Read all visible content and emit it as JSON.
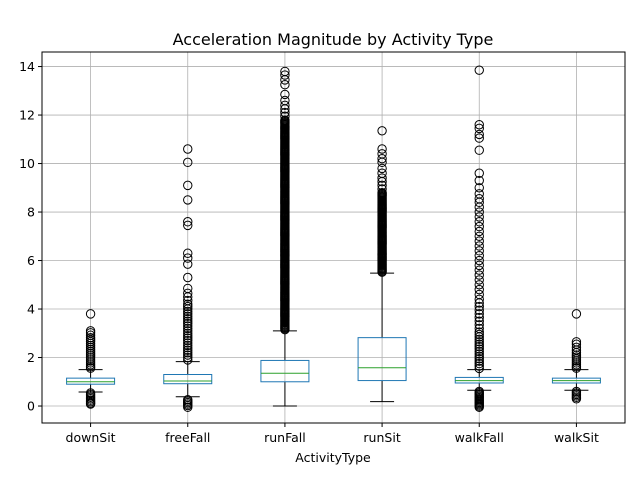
{
  "chart_data": {
    "type": "box",
    "title": "Acceleration Magnitude by Activity Type",
    "xlabel": "ActivityType",
    "ylabel": "",
    "ylim": [
      -0.7,
      14.6
    ],
    "yticks": [
      0,
      2,
      4,
      6,
      8,
      10,
      12,
      14
    ],
    "grid": true,
    "legend": "none",
    "colors": {
      "box": "#1f77b4",
      "median": "#2ca02c",
      "whisker": "#000000",
      "flier": "#000000",
      "grid": "#b0b0b0"
    },
    "categories": [
      "downSit",
      "freeFall",
      "runFall",
      "runSit",
      "walkFall",
      "walkSit"
    ],
    "boxes": [
      {
        "category": "downSit",
        "whislo": 0.58,
        "q1": 0.9,
        "med": 1.0,
        "q3": 1.15,
        "whishi": 1.5,
        "fliers_low": [
          0.08,
          0.12,
          0.18,
          0.24,
          0.3,
          0.36,
          0.42,
          0.48,
          0.54
        ],
        "fliers_high": [
          1.56,
          1.62,
          1.7,
          1.78,
          1.86,
          1.94,
          2.02,
          2.1,
          2.18,
          2.26,
          2.34,
          2.42,
          2.5,
          2.58,
          2.66,
          2.74,
          2.82,
          2.92,
          3.02,
          3.1,
          3.8
        ]
      },
      {
        "category": "freeFall",
        "whislo": 0.38,
        "q1": 0.92,
        "med": 1.03,
        "q3": 1.3,
        "whishi": 1.83,
        "fliers_low": [
          -0.05,
          0.02,
          0.08,
          0.14,
          0.2,
          0.26
        ],
        "fliers_high": [
          1.9,
          2.0,
          2.1,
          2.2,
          2.3,
          2.4,
          2.5,
          2.6,
          2.7,
          2.8,
          2.9,
          3.0,
          3.1,
          3.2,
          3.3,
          3.4,
          3.5,
          3.6,
          3.7,
          3.8,
          3.9,
          4.0,
          4.1,
          4.2,
          4.35,
          4.5,
          4.65,
          4.85,
          5.3,
          5.85,
          6.1,
          6.3,
          7.45,
          7.6,
          8.5,
          9.1,
          10.05,
          10.6
        ]
      },
      {
        "category": "runFall",
        "whislo": 0.0,
        "q1": 1.0,
        "med": 1.35,
        "q3": 1.88,
        "whishi": 3.1,
        "fliers_low": [],
        "flier_range": [
          3.15,
          11.8
        ],
        "fliers_high": [
          11.95,
          12.1,
          12.25,
          12.4,
          12.6,
          12.85,
          13.25,
          13.45,
          13.65,
          13.8
        ]
      },
      {
        "category": "runSit",
        "whislo": 0.18,
        "q1": 1.05,
        "med": 1.58,
        "q3": 2.82,
        "whishi": 5.48,
        "fliers_low": [],
        "flier_range": [
          5.52,
          8.8
        ],
        "fliers_high": [
          8.95,
          9.1,
          9.25,
          9.4,
          9.6,
          9.8,
          10.05,
          10.2,
          10.4,
          10.6,
          11.35
        ]
      },
      {
        "category": "walkFall",
        "whislo": 0.65,
        "q1": 0.95,
        "med": 1.05,
        "q3": 1.18,
        "whishi": 1.5,
        "fliers_low": [
          -0.05,
          0.0,
          0.05,
          0.1,
          0.15,
          0.2,
          0.25,
          0.3,
          0.35,
          0.4,
          0.45,
          0.5,
          0.55,
          0.6
        ],
        "fliers_high": [
          1.55,
          1.65,
          1.75,
          1.85,
          1.95,
          2.05,
          2.15,
          2.25,
          2.35,
          2.45,
          2.55,
          2.65,
          2.75,
          2.85,
          2.95,
          3.05,
          3.2,
          3.35,
          3.5,
          3.65,
          3.8,
          3.95,
          4.1,
          4.25,
          4.4,
          4.6,
          4.8,
          5.0,
          5.2,
          5.4,
          5.6,
          5.8,
          6.0,
          6.2,
          6.4,
          6.6,
          6.8,
          7.0,
          7.2,
          7.4,
          7.6,
          7.8,
          8.0,
          8.2,
          8.4,
          8.55,
          8.75,
          9.0,
          9.3,
          9.6,
          10.55,
          11.05,
          11.2,
          11.45,
          11.6,
          13.85
        ]
      },
      {
        "category": "walkSit",
        "whislo": 0.65,
        "q1": 0.95,
        "med": 1.05,
        "q3": 1.15,
        "whishi": 1.5,
        "fliers_low": [
          0.3,
          0.36,
          0.42,
          0.48,
          0.54,
          0.6
        ],
        "fliers_high": [
          1.56,
          1.62,
          1.7,
          1.78,
          1.86,
          1.94,
          2.02,
          2.1,
          2.2,
          2.3,
          2.42,
          2.55,
          2.65,
          3.8
        ]
      }
    ]
  }
}
